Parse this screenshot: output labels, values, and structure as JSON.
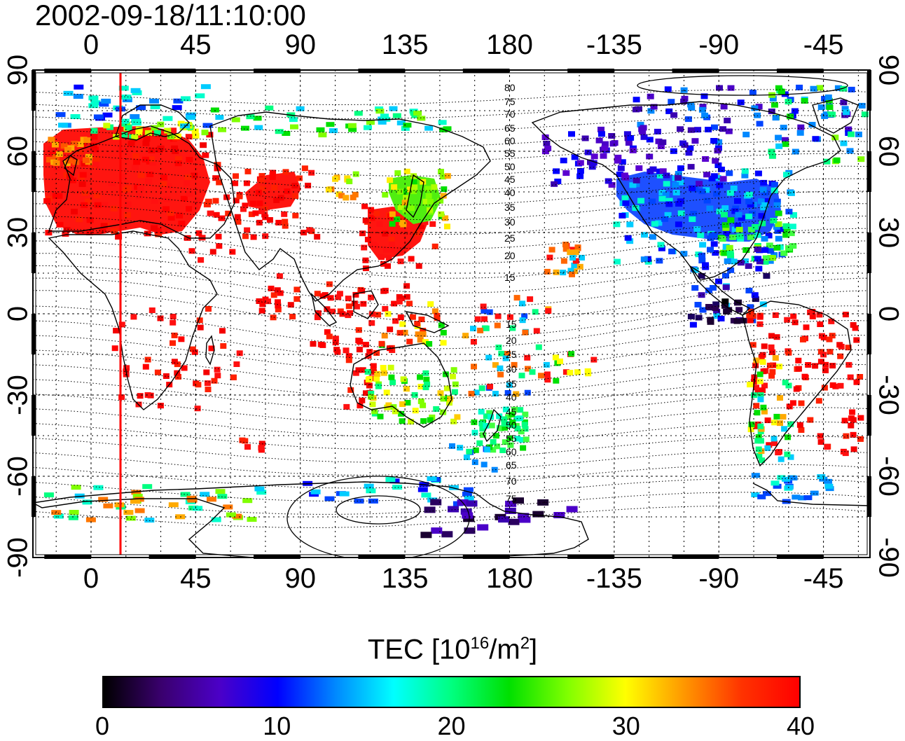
{
  "title": "2002-09-18/11:10:00",
  "x_ticks": [
    "0",
    "45",
    "90",
    "135",
    "180",
    "-135",
    "-90",
    "-45"
  ],
  "y_ticks": [
    "90",
    "60",
    "30",
    "0",
    "-30",
    "-60",
    "-90"
  ],
  "contour_labels_north": [
    "80",
    "75",
    "70",
    "65",
    "60",
    "55",
    "50",
    "45",
    "40",
    "35",
    "30",
    "25",
    "20",
    "15"
  ],
  "contour_labels_south": [
    "15",
    "20",
    "25",
    "30",
    "35",
    "40",
    "45",
    "50",
    "55",
    "60",
    "65",
    "70",
    "75"
  ],
  "colorbar": {
    "label": "TEC  [10",
    "label_sup": "16",
    "label_unit": "/m",
    "label_unit_sup": "2",
    "label_end": "]",
    "ticks": [
      "0",
      "10",
      "20",
      "30",
      "40"
    ],
    "colors": [
      "#000000",
      "#3a006e",
      "#4b00c8",
      "#0000ff",
      "#0088ff",
      "#00ffff",
      "#00ff80",
      "#00e000",
      "#80ff00",
      "#ffff00",
      "#ff9900",
      "#ff3300",
      "#ff0000"
    ]
  },
  "colors": {
    "marker_line": "#ff0000",
    "high": "#ff1010",
    "mid": "#00e000",
    "low": "#2020ff"
  }
}
